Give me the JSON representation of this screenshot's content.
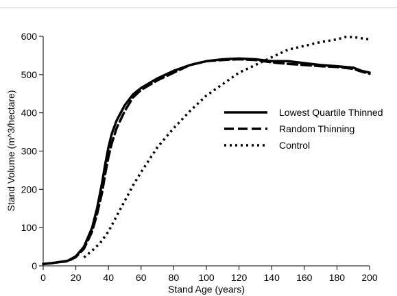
{
  "chart_data": {
    "type": "line",
    "title": "",
    "xlabel": "Stand Age (years)",
    "ylabel": "Stand Volume (m^3/hectare)",
    "xlim": [
      0,
      200
    ],
    "ylim": [
      0,
      600
    ],
    "xticks": [
      0,
      20,
      40,
      60,
      80,
      100,
      120,
      140,
      160,
      180,
      200
    ],
    "yticks": [
      0,
      100,
      200,
      300,
      400,
      500,
      600
    ],
    "grid": false,
    "legend_position": "right",
    "series": [
      {
        "name": "Lowest Quartile Thinned",
        "style": "solid",
        "color": "#000000",
        "x": [
          0,
          5,
          10,
          15,
          20,
          25,
          30,
          33,
          36,
          38,
          40,
          42,
          45,
          50,
          55,
          60,
          70,
          80,
          90,
          100,
          110,
          120,
          130,
          140,
          150,
          160,
          170,
          180,
          190,
          195,
          200
        ],
        "y": [
          5,
          7,
          10,
          13,
          25,
          50,
          100,
          150,
          215,
          265,
          310,
          345,
          380,
          420,
          448,
          465,
          490,
          510,
          525,
          535,
          540,
          542,
          540,
          535,
          535,
          530,
          525,
          522,
          518,
          510,
          505
        ]
      },
      {
        "name": "Random Thinning",
        "style": "dashed",
        "color": "#000000",
        "x": [
          0,
          5,
          10,
          15,
          20,
          25,
          30,
          33,
          36,
          38,
          40,
          42,
          45,
          50,
          55,
          60,
          70,
          80,
          90,
          100,
          110,
          120,
          130,
          140,
          150,
          160,
          170,
          180,
          190,
          195,
          200
        ],
        "y": [
          5,
          7,
          10,
          12,
          23,
          45,
          90,
          135,
          190,
          240,
          285,
          320,
          360,
          405,
          440,
          460,
          485,
          505,
          525,
          535,
          538,
          540,
          538,
          532,
          528,
          525,
          522,
          520,
          515,
          508,
          502
        ]
      },
      {
        "name": "Control",
        "style": "dotted",
        "color": "#000000",
        "x": [
          25,
          30,
          35,
          40,
          45,
          50,
          55,
          60,
          70,
          80,
          90,
          100,
          110,
          120,
          130,
          140,
          150,
          160,
          170,
          180,
          185,
          190,
          195,
          200
        ],
        "y": [
          22,
          40,
          60,
          90,
          130,
          170,
          210,
          245,
          310,
          360,
          405,
          445,
          475,
          505,
          525,
          545,
          565,
          575,
          585,
          592,
          598,
          598,
          595,
          592
        ]
      }
    ]
  }
}
